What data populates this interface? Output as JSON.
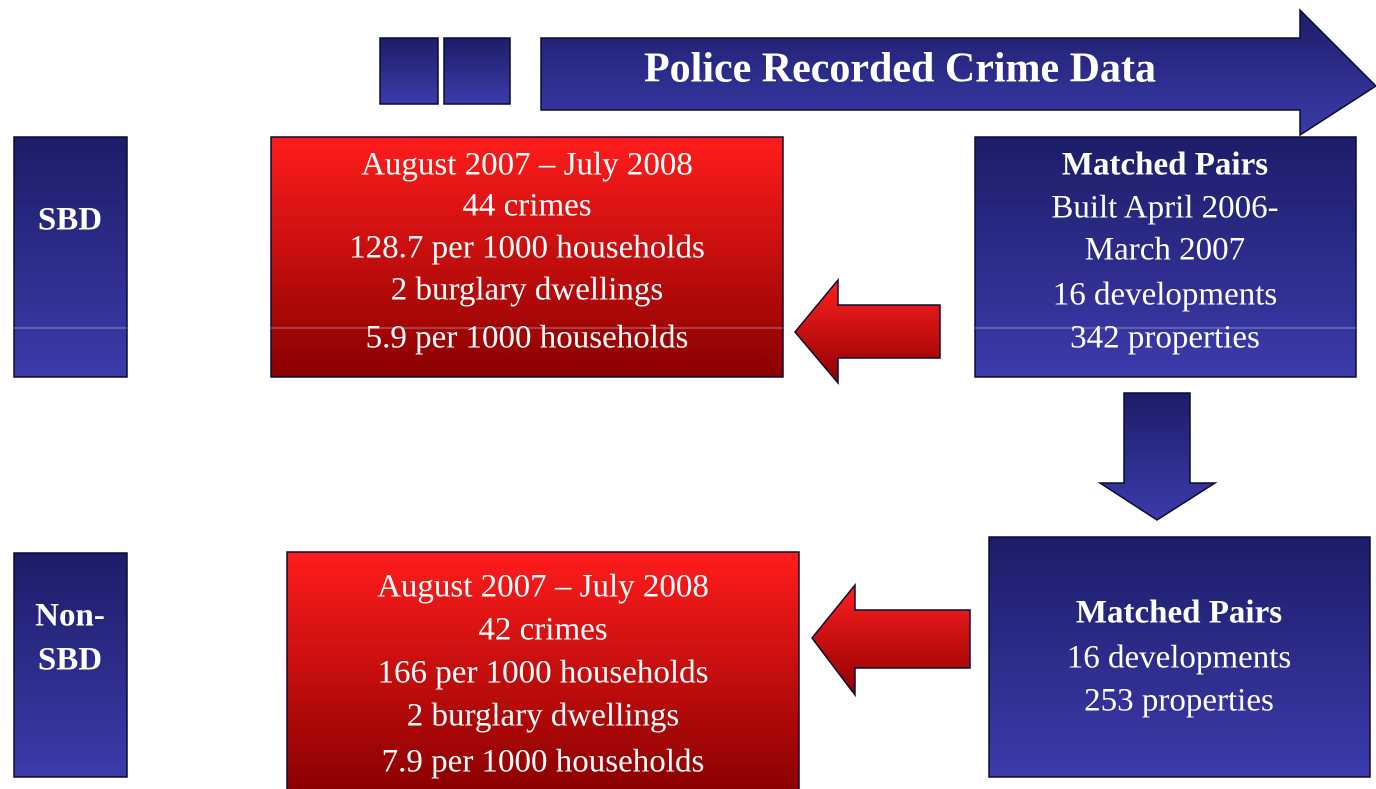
{
  "header": {
    "title": "Police Recorded Crime Data"
  },
  "rows": [
    {
      "label": [
        "SBD"
      ],
      "results": [
        "August 2007 – July 2008",
        "44 crimes",
        "128.7 per 1000 households",
        "2 burglary dwellings",
        "5.9 per 1000 households"
      ],
      "sample": {
        "heading": "Matched Pairs",
        "lines": [
          "Built April 2006-",
          "March 2007",
          "16 developments",
          "342 properties"
        ]
      }
    },
    {
      "label": [
        "Non-",
        "SBD"
      ],
      "results": [
        "August 2007 – July 2008",
        "42 crimes",
        "166 per 1000 households",
        "2 burglary dwellings",
        "7.9 per 1000 households"
      ],
      "sample": {
        "heading": "Matched Pairs",
        "lines": [
          "16 developments",
          "253 properties"
        ]
      }
    }
  ]
}
